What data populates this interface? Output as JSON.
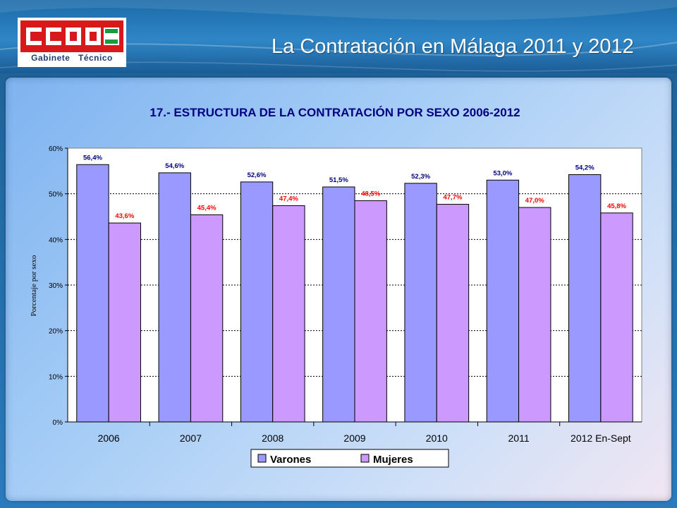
{
  "header": {
    "title": "La Contratación en Málaga 2011 y 2012",
    "logo_caption_left": "Gabinete",
    "logo_caption_right": "Técnico"
  },
  "colors": {
    "varones": "#9999ff",
    "mujeres": "#cc99ff",
    "title_navy": "#000080",
    "varones_label": "#000080",
    "mujeres_label": "#ff0000",
    "logo_red": "#d7191c",
    "logo_green": "#1a9a3c"
  },
  "chart_data": {
    "type": "bar",
    "title": "17.- ESTRUCTURA DE LA CONTRATACIÓN POR SEXO 2006-2012",
    "ylabel": "Porcentaje por sexo",
    "xlabel": "",
    "ylim": [
      0,
      60
    ],
    "yticks": [
      "0%",
      "10%",
      "20%",
      "30%",
      "40%",
      "50%",
      "60%"
    ],
    "ytick_values": [
      0,
      10,
      20,
      30,
      40,
      50,
      60
    ],
    "grid": true,
    "legend_position": "bottom",
    "categories": [
      "2006",
      "2007",
      "2008",
      "2009",
      "2010",
      "2011",
      "2012 En-Sept"
    ],
    "series": [
      {
        "name": "Varones",
        "values": [
          56.4,
          54.6,
          52.6,
          51.5,
          52.3,
          53.0,
          54.2
        ],
        "labels": [
          "56,4%",
          "54,6%",
          "52,6%",
          "51,5%",
          "52,3%",
          "53,0%",
          "54,2%"
        ]
      },
      {
        "name": "Mujeres",
        "values": [
          43.6,
          45.4,
          47.4,
          48.5,
          47.7,
          47.0,
          45.8
        ],
        "labels": [
          "43,6%",
          "45,4%",
          "47,4%",
          "48,5%",
          "47,7%",
          "47,0%",
          "45,8%"
        ]
      }
    ]
  }
}
